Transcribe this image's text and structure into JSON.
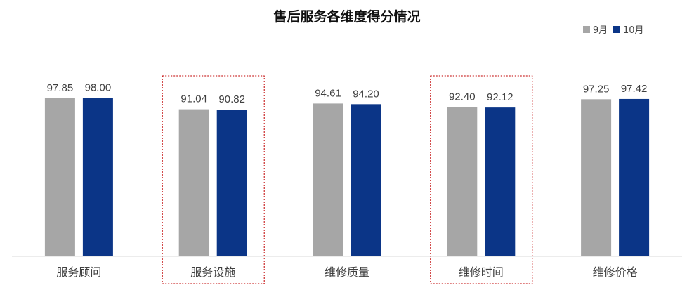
{
  "colors": {
    "series_sep": "#a6a6a6",
    "series_oct": "#0b3587",
    "highlight_border": "#c00000",
    "axis": "#d9d9d9"
  },
  "chart_data": {
    "type": "bar",
    "title": "售后服务各维度得分情况",
    "xlabel": "",
    "ylabel": "",
    "ylim": [
      0,
      100
    ],
    "grid": false,
    "legend": "top-right",
    "categories": [
      "服务顾问",
      "服务设施",
      "维修质量",
      "维修时间",
      "维修价格"
    ],
    "series": [
      {
        "name": "9月",
        "values": [
          97.85,
          91.04,
          94.61,
          92.4,
          97.25
        ],
        "labels": [
          "97.85",
          "91.04",
          "94.61",
          "92.40",
          "97.25"
        ]
      },
      {
        "name": "10月",
        "values": [
          98.0,
          90.82,
          94.2,
          92.12,
          97.42
        ],
        "labels": [
          "98.00",
          "90.82",
          "94.20",
          "92.12",
          "97.42"
        ]
      }
    ],
    "highlighted_categories": [
      "服务设施",
      "维修时间"
    ]
  }
}
